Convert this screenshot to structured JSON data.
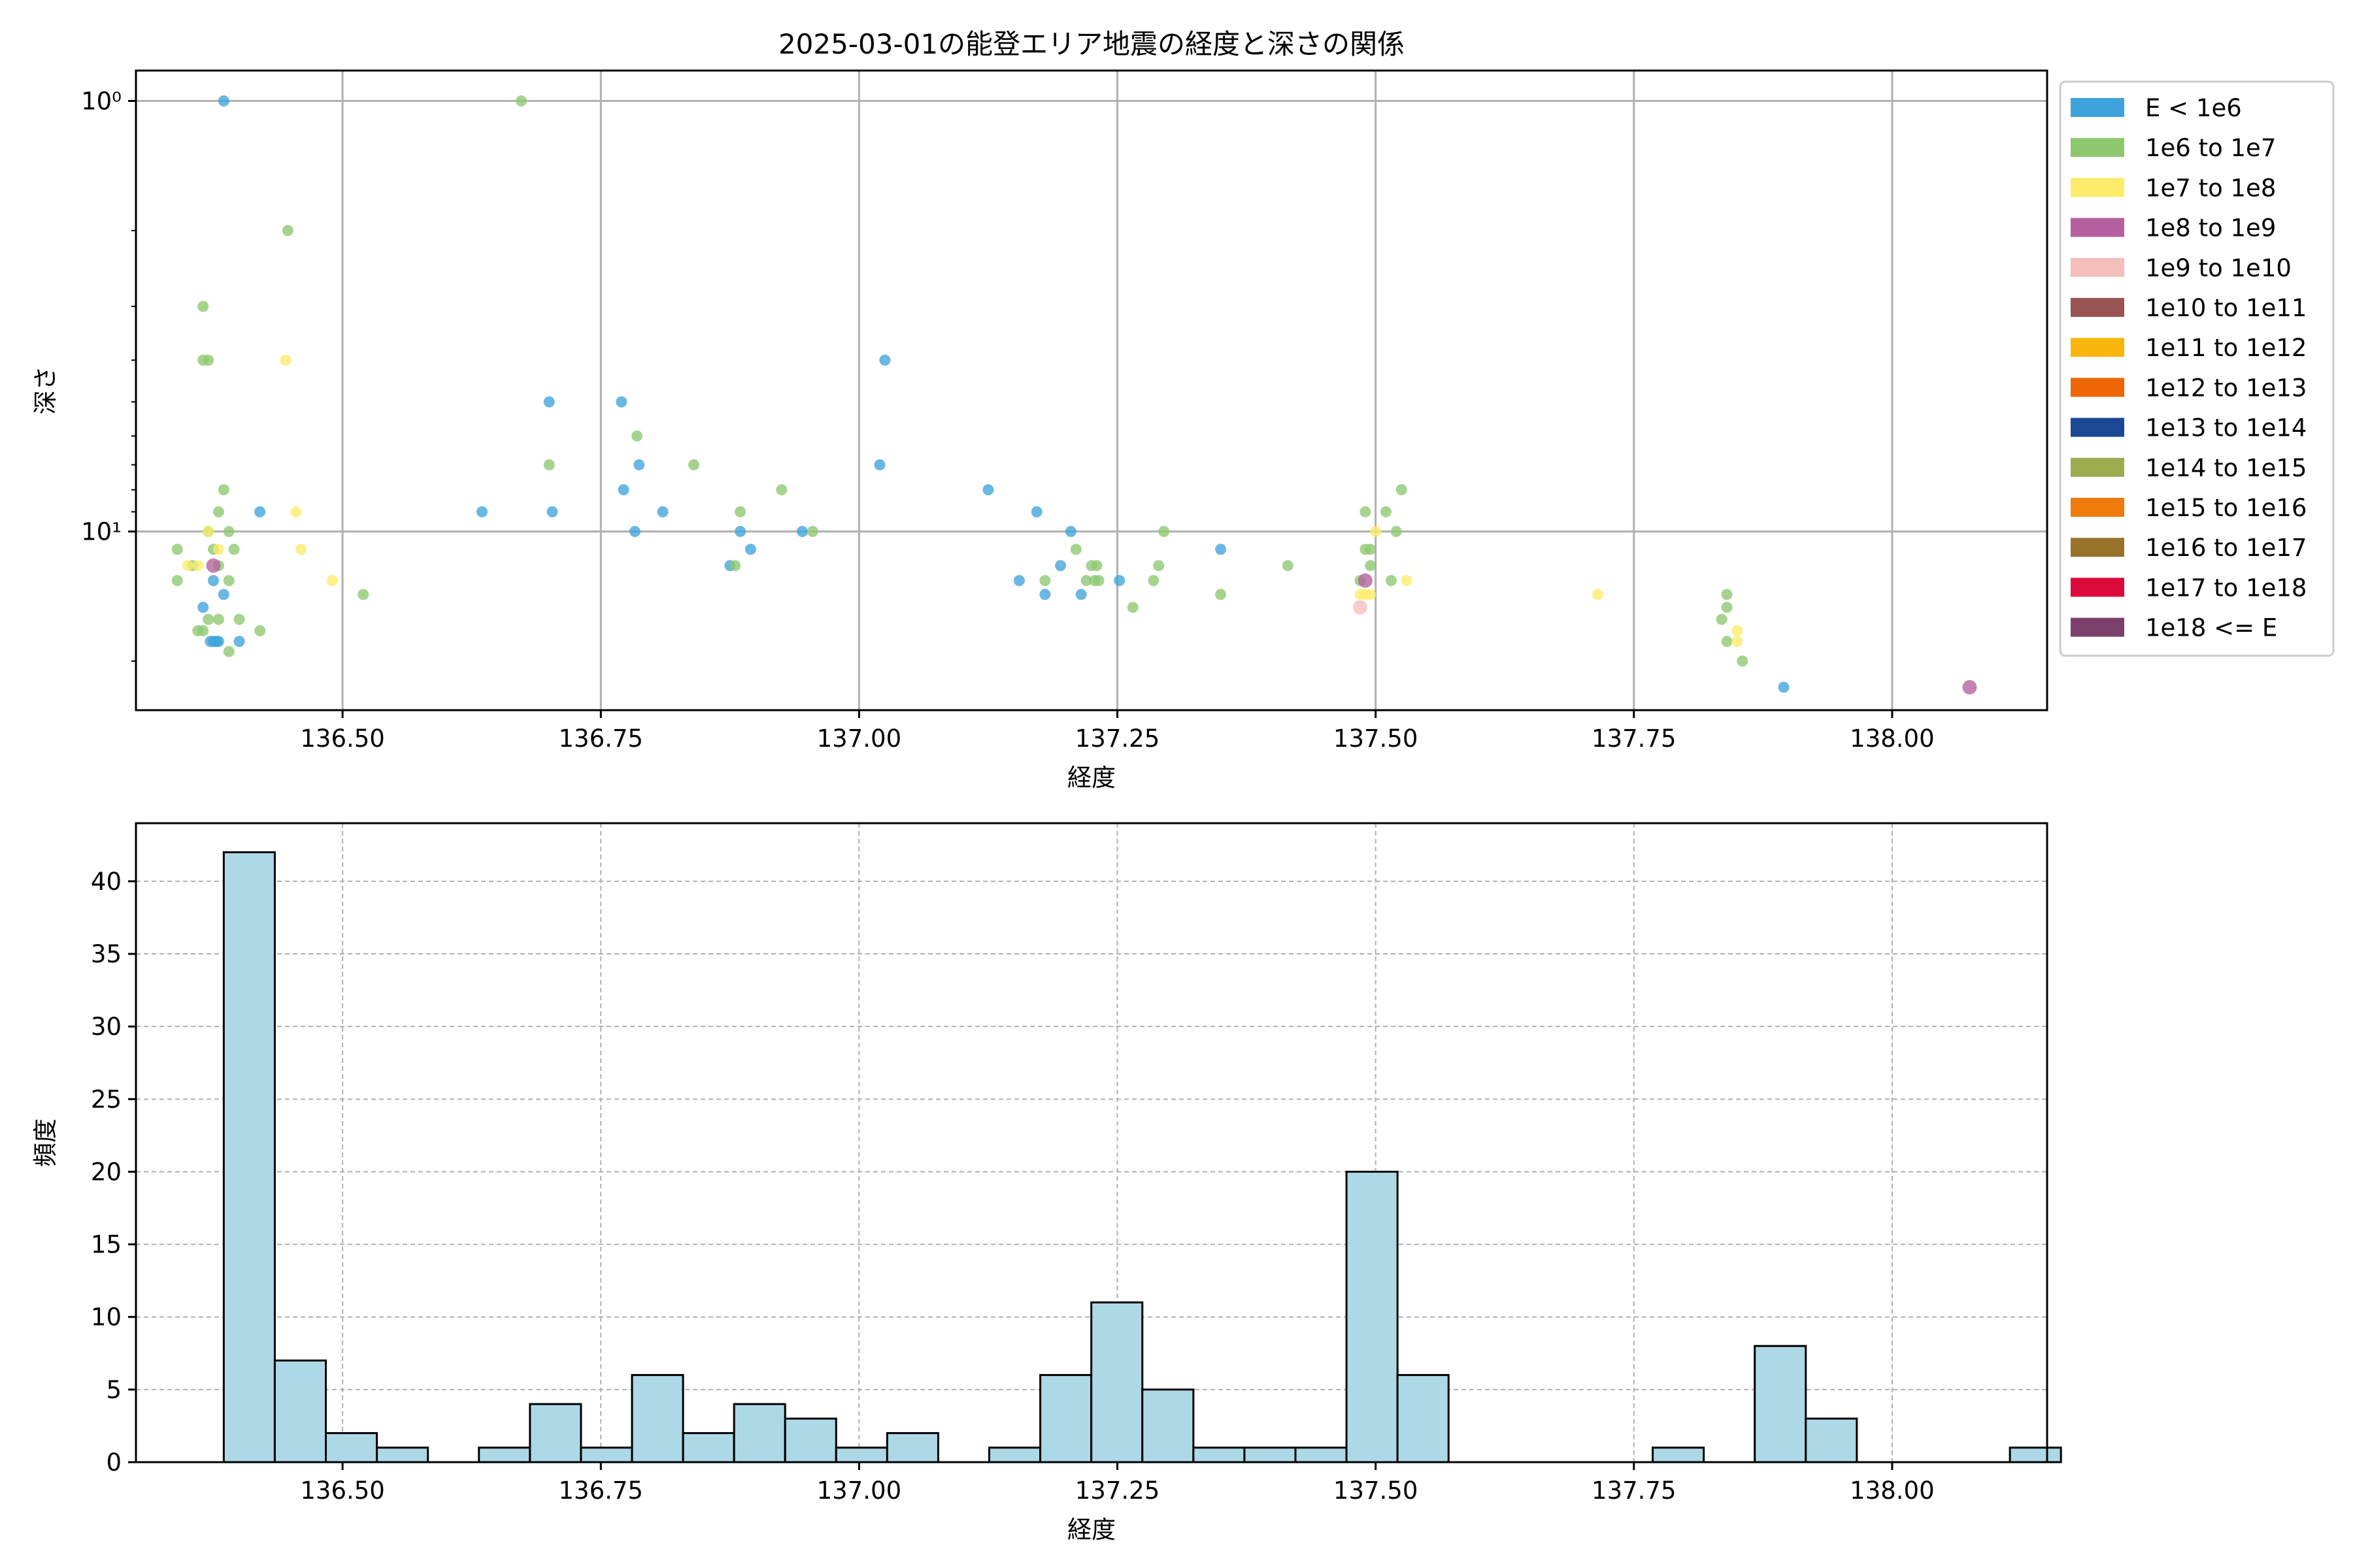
{
  "chart_data": [
    {
      "type": "scatter",
      "title": "2025-03-01の能登エリア地震の経度と深さの関係",
      "xlabel": "経度",
      "ylabel": "深さ",
      "yscale": "log-inverted",
      "xlim": [
        136.3,
        138.15
      ],
      "ylim": [
        26,
        0.85
      ],
      "xticks": [
        "136.50",
        "136.75",
        "137.00",
        "137.25",
        "137.50",
        "137.75",
        "138.00"
      ],
      "yticks": [
        "10⁰",
        "10¹"
      ],
      "grid": true,
      "legend": {
        "placement": "outside-right",
        "entries": [
          {
            "label": "E < 1e6",
            "color": "#3fa3db"
          },
          {
            "label": "1e6 to 1e7",
            "color": "#8dc86f"
          },
          {
            "label": "1e7 to 1e8",
            "color": "#fdec6a"
          },
          {
            "label": "1e8 to 1e9",
            "color": "#b5609e"
          },
          {
            "label": "1e9 to 1e10",
            "color": "#f4bfba"
          },
          {
            "label": "1e10 to 1e11",
            "color": "#975450"
          },
          {
            "label": "1e11 to 1e12",
            "color": "#f8b50a"
          },
          {
            "label": "1e12 to 1e13",
            "color": "#ee6506"
          },
          {
            "label": "1e13 to 1e14",
            "color": "#1b4893"
          },
          {
            "label": "1e14 to 1e15",
            "color": "#9cac4f"
          },
          {
            "label": "1e15 to 1e16",
            "color": "#ee7b0b"
          },
          {
            "label": "1e16 to 1e17",
            "color": "#98722b"
          },
          {
            "label": "1e17 to 1e18",
            "color": "#db0a3b"
          },
          {
            "label": "1e18 <= E",
            "color": "#7b406c"
          }
        ]
      },
      "series": [
        {
          "label": "E < 1e6",
          "points": [
            [
              136.385,
              1
            ],
            [
              136.365,
              15
            ],
            [
              136.372,
              18
            ],
            [
              136.375,
              18
            ],
            [
              136.378,
              18
            ],
            [
              136.38,
              18
            ],
            [
              136.385,
              14
            ],
            [
              136.375,
              13
            ],
            [
              136.4,
              18
            ],
            [
              136.42,
              9
            ],
            [
              136.635,
              9
            ],
            [
              136.7,
              5
            ],
            [
              136.703,
              9
            ],
            [
              136.77,
              5
            ],
            [
              136.772,
              8
            ],
            [
              136.783,
              10
            ],
            [
              136.787,
              7
            ],
            [
              136.81,
              9
            ],
            [
              136.875,
              12
            ],
            [
              136.885,
              10
            ],
            [
              136.895,
              11
            ],
            [
              136.945,
              10
            ],
            [
              137.025,
              4
            ],
            [
              137.02,
              7
            ],
            [
              137.125,
              8
            ],
            [
              137.155,
              13
            ],
            [
              137.172,
              9
            ],
            [
              137.18,
              14
            ],
            [
              137.195,
              12
            ],
            [
              137.205,
              10
            ],
            [
              137.215,
              14
            ],
            [
              137.252,
              13
            ],
            [
              137.35,
              11
            ],
            [
              137.895,
              23
            ]
          ]
        },
        {
          "label": "1e6 to 1e7",
          "points": [
            [
              136.673,
              1
            ],
            [
              136.447,
              2
            ],
            [
              136.365,
              3
            ],
            [
              136.365,
              4
            ],
            [
              136.37,
              4
            ],
            [
              136.34,
              11
            ],
            [
              136.34,
              13
            ],
            [
              136.355,
              12
            ],
            [
              136.37,
              10
            ],
            [
              136.375,
              11
            ],
            [
              136.38,
              9
            ],
            [
              136.38,
              12
            ],
            [
              136.385,
              8
            ],
            [
              136.39,
              10
            ],
            [
              136.395,
              11
            ],
            [
              136.39,
              13
            ],
            [
              136.36,
              17
            ],
            [
              136.365,
              17
            ],
            [
              136.37,
              16
            ],
            [
              136.38,
              16
            ],
            [
              136.39,
              19
            ],
            [
              136.4,
              16
            ],
            [
              136.42,
              17
            ],
            [
              136.52,
              14
            ],
            [
              136.7,
              7
            ],
            [
              136.785,
              6
            ],
            [
              136.84,
              7
            ],
            [
              136.88,
              12
            ],
            [
              136.885,
              9
            ],
            [
              136.925,
              8
            ],
            [
              136.955,
              10
            ],
            [
              137.18,
              13
            ],
            [
              137.21,
              11
            ],
            [
              137.22,
              13
            ],
            [
              137.225,
              12
            ],
            [
              137.228,
              13
            ],
            [
              137.232,
              13
            ],
            [
              137.23,
              12
            ],
            [
              137.265,
              15
            ],
            [
              137.285,
              13
            ],
            [
              137.29,
              12
            ],
            [
              137.295,
              10
            ],
            [
              137.35,
              14
            ],
            [
              137.415,
              12
            ],
            [
              137.485,
              13
            ],
            [
              137.49,
              9
            ],
            [
              137.49,
              11
            ],
            [
              137.495,
              11
            ],
            [
              137.495,
              12
            ],
            [
              137.51,
              9
            ],
            [
              137.515,
              13
            ],
            [
              137.52,
              10
            ],
            [
              137.525,
              8
            ],
            [
              137.84,
              14
            ],
            [
              137.835,
              16
            ],
            [
              137.84,
              15
            ],
            [
              137.84,
              18
            ],
            [
              137.855,
              20
            ]
          ]
        },
        {
          "label": "1e7 to 1e8",
          "points": [
            [
              136.445,
              4
            ],
            [
              136.455,
              9
            ],
            [
              136.46,
              11
            ],
            [
              136.35,
              12
            ],
            [
              136.36,
              12
            ],
            [
              136.37,
              10
            ],
            [
              136.38,
              11
            ],
            [
              136.49,
              13
            ],
            [
              137.485,
              14
            ],
            [
              137.49,
              14
            ],
            [
              137.495,
              14
            ],
            [
              137.5,
              10
            ],
            [
              137.53,
              13
            ],
            [
              137.715,
              14
            ],
            [
              137.85,
              17
            ],
            [
              137.85,
              18
            ]
          ]
        },
        {
          "label": "1e8 to 1e9",
          "points": [
            [
              136.375,
              12
            ],
            [
              137.49,
              13
            ],
            [
              138.075,
              23
            ]
          ]
        },
        {
          "label": "1e9 to 1e10",
          "points": [
            [
              137.485,
              15
            ]
          ]
        }
      ]
    },
    {
      "type": "bar",
      "subtype": "histogram",
      "xlabel": "経度",
      "ylabel": "頻度",
      "xlim": [
        136.3,
        138.15
      ],
      "ylim": [
        0,
        44
      ],
      "xticks": [
        "136.50",
        "136.75",
        "137.00",
        "137.25",
        "137.50",
        "137.75",
        "138.00"
      ],
      "yticks": [
        "0",
        "5",
        "10",
        "15",
        "20",
        "25",
        "30",
        "35",
        "40"
      ],
      "grid": true,
      "bar_color": "#add8e6",
      "bin_start": 136.385,
      "bin_width": 0.0494,
      "values": [
        42,
        7,
        2,
        1,
        0,
        1,
        4,
        1,
        6,
        2,
        4,
        3,
        1,
        2,
        0,
        1,
        6,
        11,
        5,
        1,
        1,
        1,
        20,
        6,
        0,
        0,
        0,
        0,
        1,
        0,
        8,
        3,
        0,
        0,
        0,
        1
      ]
    }
  ]
}
